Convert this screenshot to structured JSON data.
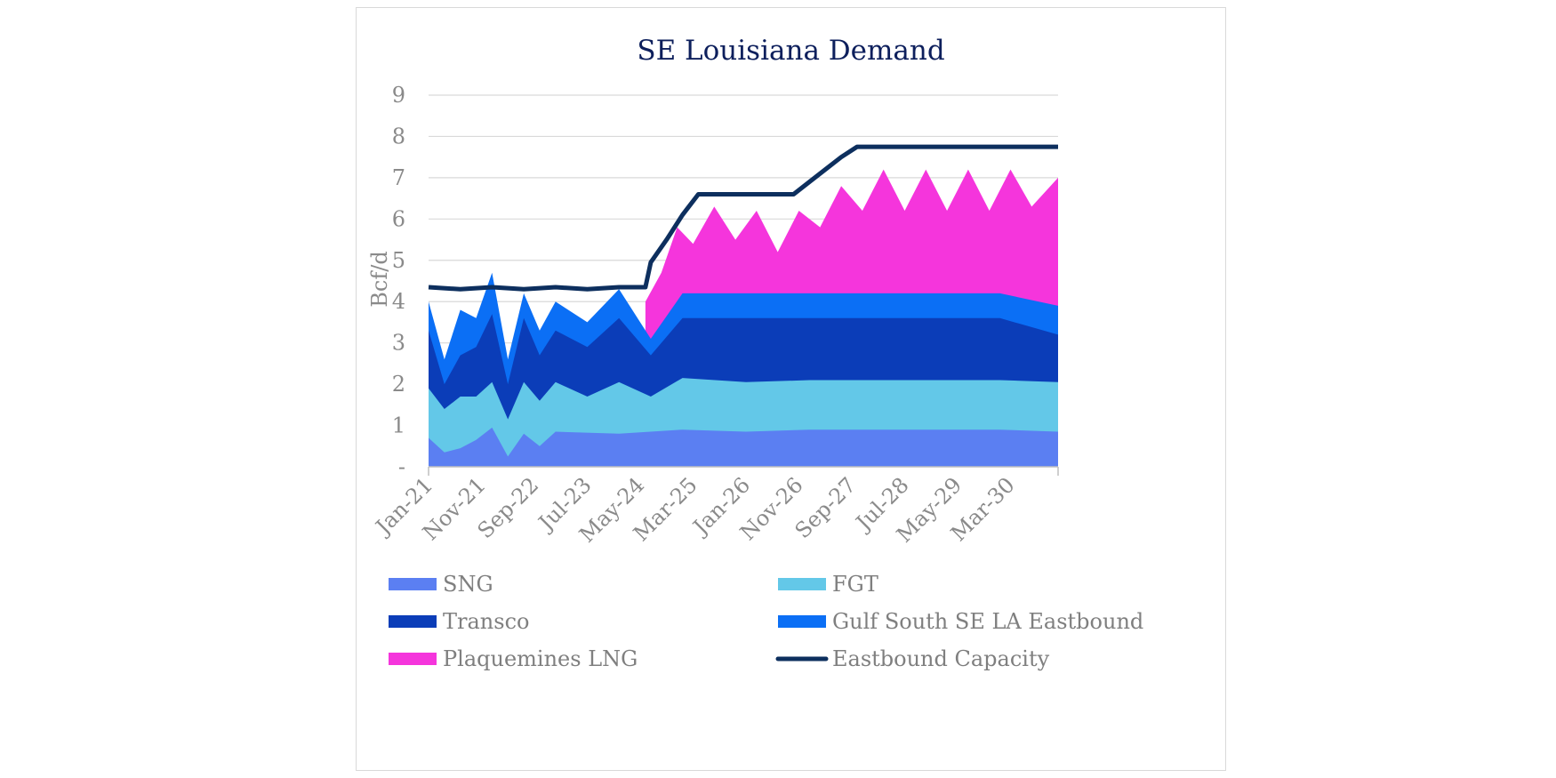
{
  "chart_data": {
    "type": "area",
    "title": "SE Louisiana Demand",
    "xlabel": "",
    "ylabel": "Bcf/d",
    "ylim": [
      0,
      9
    ],
    "y_ticks": [
      "-",
      "1",
      "2",
      "3",
      "4",
      "5",
      "6",
      "7",
      "8",
      "9"
    ],
    "x_ticks": [
      "Jan-21",
      "Nov-21",
      "Sep-22",
      "Jul-23",
      "May-24",
      "Mar-25",
      "Jan-26",
      "Nov-26",
      "Sep-27",
      "Jul-28",
      "May-29",
      "Mar-30"
    ],
    "x_range": [
      "Jan-21",
      "Dec-30"
    ],
    "grid": "horizontal",
    "legend_position": "bottom",
    "series": [
      {
        "name": "SNG",
        "stack": "area",
        "color": "#5b7ff2",
        "points": [
          [
            "Jan-21",
            0.7
          ],
          [
            "Apr-21",
            0.35
          ],
          [
            "Jul-21",
            0.45
          ],
          [
            "Oct-21",
            0.65
          ],
          [
            "Jan-22",
            0.95
          ],
          [
            "Apr-22",
            0.25
          ],
          [
            "Jul-22",
            0.8
          ],
          [
            "Oct-22",
            0.5
          ],
          [
            "Jan-23",
            0.85
          ],
          [
            "Jan-24",
            0.8
          ],
          [
            "Jan-25",
            0.9
          ],
          [
            "Jan-26",
            0.85
          ],
          [
            "Jan-27",
            0.9
          ],
          [
            "Jan-28",
            0.9
          ],
          [
            "Jan-29",
            0.9
          ],
          [
            "Jan-30",
            0.9
          ],
          [
            "Dec-30",
            0.85
          ]
        ]
      },
      {
        "name": "FGT",
        "stack": "area",
        "color": "#63c8e8",
        "points": [
          [
            "Jan-21",
            1.9
          ],
          [
            "Apr-21",
            1.4
          ],
          [
            "Jul-21",
            1.7
          ],
          [
            "Oct-21",
            1.7
          ],
          [
            "Jan-22",
            2.05
          ],
          [
            "Apr-22",
            1.15
          ],
          [
            "Jul-22",
            2.05
          ],
          [
            "Oct-22",
            1.6
          ],
          [
            "Jan-23",
            2.05
          ],
          [
            "Jul-23",
            1.7
          ],
          [
            "Jan-24",
            2.05
          ],
          [
            "Jul-24",
            1.7
          ],
          [
            "Jan-25",
            2.15
          ],
          [
            "Jan-26",
            2.05
          ],
          [
            "Jan-27",
            2.1
          ],
          [
            "Jan-28",
            2.1
          ],
          [
            "Jan-29",
            2.1
          ],
          [
            "Jan-30",
            2.1
          ],
          [
            "Dec-30",
            2.05
          ]
        ]
      },
      {
        "name": "Transco",
        "stack": "area",
        "color": "#0b3db8",
        "points": [
          [
            "Jan-21",
            3.3
          ],
          [
            "Apr-21",
            2.0
          ],
          [
            "Jul-21",
            2.7
          ],
          [
            "Oct-21",
            2.9
          ],
          [
            "Jan-22",
            3.7
          ],
          [
            "Apr-22",
            2.0
          ],
          [
            "Jul-22",
            3.6
          ],
          [
            "Oct-22",
            2.7
          ],
          [
            "Jan-23",
            3.3
          ],
          [
            "Jul-23",
            2.9
          ],
          [
            "Jan-24",
            3.6
          ],
          [
            "Jul-24",
            2.7
          ],
          [
            "Jan-25",
            3.6
          ],
          [
            "Jan-26",
            3.6
          ],
          [
            "Jan-27",
            3.6
          ],
          [
            "Jan-28",
            3.6
          ],
          [
            "Jan-29",
            3.6
          ],
          [
            "Jan-30",
            3.6
          ],
          [
            "Dec-30",
            3.2
          ]
        ]
      },
      {
        "name": "Gulf South SE LA Eastbound",
        "stack": "area",
        "color": "#0b6ff5",
        "points": [
          [
            "Jan-21",
            4.0
          ],
          [
            "Apr-21",
            2.6
          ],
          [
            "Jul-21",
            3.8
          ],
          [
            "Oct-21",
            3.6
          ],
          [
            "Jan-22",
            4.7
          ],
          [
            "Apr-22",
            2.6
          ],
          [
            "Jul-22",
            4.2
          ],
          [
            "Oct-22",
            3.3
          ],
          [
            "Jan-23",
            4.0
          ],
          [
            "Jul-23",
            3.5
          ],
          [
            "Jan-24",
            4.3
          ],
          [
            "Jul-24",
            3.1
          ],
          [
            "Jan-25",
            4.2
          ],
          [
            "Jan-26",
            4.2
          ],
          [
            "Jan-27",
            4.2
          ],
          [
            "Jan-28",
            4.2
          ],
          [
            "Jan-29",
            4.2
          ],
          [
            "Jan-30",
            4.2
          ],
          [
            "Dec-30",
            3.9
          ]
        ]
      },
      {
        "name": "Plaquemines LNG",
        "stack": "area",
        "color": "#f535dc",
        "points": [
          [
            "Jun-24",
            4.0
          ],
          [
            "Sep-24",
            4.7
          ],
          [
            "Dec-24",
            5.8
          ],
          [
            "Mar-25",
            5.4
          ],
          [
            "Jul-25",
            6.3
          ],
          [
            "Nov-25",
            5.5
          ],
          [
            "Mar-26",
            6.2
          ],
          [
            "Jul-26",
            5.2
          ],
          [
            "Nov-26",
            6.2
          ],
          [
            "Mar-27",
            5.8
          ],
          [
            "Jul-27",
            6.8
          ],
          [
            "Nov-27",
            6.2
          ],
          [
            "Mar-28",
            7.2
          ],
          [
            "Jul-28",
            6.2
          ],
          [
            "Nov-28",
            7.2
          ],
          [
            "Mar-29",
            6.2
          ],
          [
            "Jul-29",
            7.2
          ],
          [
            "Nov-29",
            6.2
          ],
          [
            "Mar-30",
            7.2
          ],
          [
            "Jul-30",
            6.3
          ],
          [
            "Dec-30",
            7.0
          ]
        ]
      },
      {
        "name": "Eastbound Capacity",
        "stack": "line",
        "color": "#0d2f5e",
        "points": [
          [
            "Jan-21",
            4.35
          ],
          [
            "Jul-21",
            4.3
          ],
          [
            "Jan-22",
            4.35
          ],
          [
            "Jul-22",
            4.3
          ],
          [
            "Jan-23",
            4.35
          ],
          [
            "Jul-23",
            4.3
          ],
          [
            "Jan-24",
            4.35
          ],
          [
            "Jun-24",
            4.35
          ],
          [
            "Jul-24",
            4.95
          ],
          [
            "Oct-24",
            5.5
          ],
          [
            "Jan-25",
            6.1
          ],
          [
            "Apr-25",
            6.6
          ],
          [
            "Oct-26",
            6.6
          ],
          [
            "Jan-27",
            6.9
          ],
          [
            "Apr-27",
            7.2
          ],
          [
            "Jul-27",
            7.5
          ],
          [
            "Oct-27",
            7.75
          ],
          [
            "Dec-30",
            7.75
          ]
        ]
      }
    ]
  },
  "legend": [
    {
      "label": "SNG",
      "color": "#5b7ff2",
      "kind": "area"
    },
    {
      "label": "FGT",
      "color": "#63c8e8",
      "kind": "area"
    },
    {
      "label": "Transco",
      "color": "#0b3db8",
      "kind": "area"
    },
    {
      "label": "Gulf South SE LA Eastbound",
      "color": "#0b6ff5",
      "kind": "area"
    },
    {
      "label": "Plaquemines LNG",
      "color": "#f535dc",
      "kind": "area"
    },
    {
      "label": "Eastbound Capacity",
      "color": "#0d2f5e",
      "kind": "line"
    }
  ]
}
